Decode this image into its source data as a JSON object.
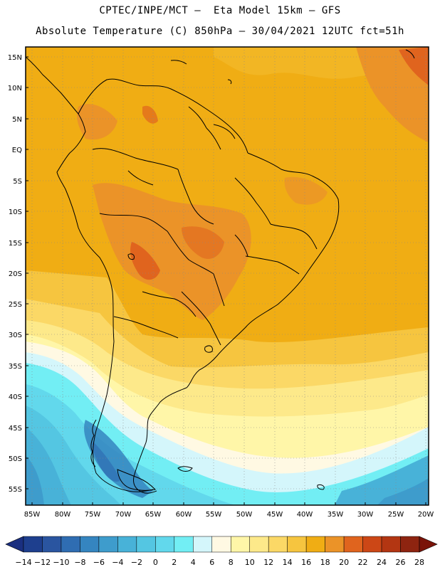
{
  "header": {
    "line1": "CPTEC/INPE/MCT –  Eta Model 15km – GFS",
    "line2": "Absolute Temperature (C) 850hPa – 30/04/2021 12UTC fct=51h"
  },
  "map": {
    "lat_labels": [
      "15N",
      "10N",
      "5N",
      "EQ",
      "5S",
      "10S",
      "15S",
      "20S",
      "25S",
      "30S",
      "35S",
      "40S",
      "45S",
      "50S",
      "55S"
    ],
    "lon_labels": [
      "85W",
      "80W",
      "75W",
      "70W",
      "65W",
      "60W",
      "55W",
      "50W",
      "45W",
      "40W",
      "35W",
      "30W",
      "25W",
      "20W"
    ]
  },
  "colorbar": {
    "labels": [
      "-14",
      "-12",
      "-10",
      "-8",
      "-6",
      "-4",
      "-2",
      "0",
      "2",
      "4",
      "6",
      "8",
      "10",
      "12",
      "14",
      "16",
      "18",
      "20",
      "22",
      "24",
      "26",
      "28"
    ],
    "colors": [
      "#1e3f8e",
      "#2a55a0",
      "#2f6db2",
      "#3585c0",
      "#3e9ccc",
      "#48b2d8",
      "#54c6e2",
      "#62d8ec",
      "#72eef4",
      "#d4f6fb",
      "#fff9e3",
      "#fff6a8",
      "#fde98a",
      "#fbd866",
      "#f6c53f",
      "#f0ad14",
      "#eb9328",
      "#e0641e",
      "#cc4716",
      "#b33612",
      "#8e2410"
    ]
  }
}
